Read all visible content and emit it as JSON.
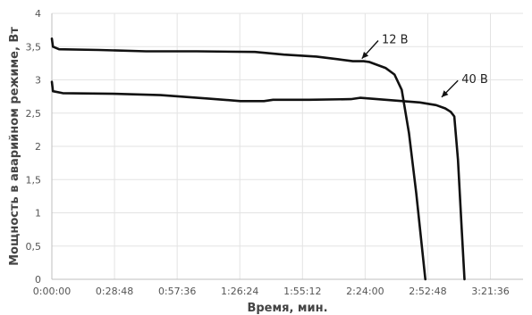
{
  "chart_data": {
    "type": "line",
    "title": "",
    "xlabel": "Время, мин.",
    "ylabel": "Мощность в аварийном режиме, Вт",
    "xlim": [
      0,
      12996
    ],
    "ylim": [
      0,
      4
    ],
    "grid": true,
    "x_ticks": [
      {
        "value": 0,
        "label": "0:00:00"
      },
      {
        "value": 1728,
        "label": "0:28:48"
      },
      {
        "value": 3456,
        "label": "0:57:36"
      },
      {
        "value": 5184,
        "label": "1:26:24"
      },
      {
        "value": 6912,
        "label": "1:55:12"
      },
      {
        "value": 8640,
        "label": "2:24:00"
      },
      {
        "value": 10368,
        "label": "2:52:48"
      },
      {
        "value": 12096,
        "label": "3:21:36"
      }
    ],
    "y_ticks": [
      {
        "value": 0,
        "label": "0"
      },
      {
        "value": 0.5,
        "label": "0,5"
      },
      {
        "value": 1,
        "label": "1"
      },
      {
        "value": 1.5,
        "label": "1,5"
      },
      {
        "value": 2,
        "label": "2"
      },
      {
        "value": 2.5,
        "label": "2,5"
      },
      {
        "value": 3,
        "label": "3"
      },
      {
        "value": 3.5,
        "label": "3,5"
      },
      {
        "value": 4,
        "label": "4"
      }
    ],
    "series": [
      {
        "name": "12 В",
        "points": [
          [
            0,
            3.62
          ],
          [
            30,
            3.5
          ],
          [
            200,
            3.46
          ],
          [
            1300,
            3.45
          ],
          [
            2600,
            3.43
          ],
          [
            4000,
            3.43
          ],
          [
            5600,
            3.42
          ],
          [
            6400,
            3.38
          ],
          [
            7300,
            3.35
          ],
          [
            7900,
            3.31
          ],
          [
            8300,
            3.28
          ],
          [
            8600,
            3.28
          ],
          [
            8750,
            3.27
          ],
          [
            9200,
            3.18
          ],
          [
            9450,
            3.08
          ],
          [
            9650,
            2.85
          ],
          [
            9850,
            2.2
          ],
          [
            10050,
            1.3
          ],
          [
            10300,
            0
          ]
        ]
      },
      {
        "name": "40 В",
        "points": [
          [
            0,
            2.97
          ],
          [
            30,
            2.83
          ],
          [
            300,
            2.8
          ],
          [
            1700,
            2.79
          ],
          [
            3000,
            2.77
          ],
          [
            4300,
            2.72
          ],
          [
            5200,
            2.68
          ],
          [
            5850,
            2.68
          ],
          [
            6100,
            2.7
          ],
          [
            7100,
            2.7
          ],
          [
            8250,
            2.71
          ],
          [
            8500,
            2.73
          ],
          [
            9200,
            2.7
          ],
          [
            10150,
            2.66
          ],
          [
            10600,
            2.62
          ],
          [
            10850,
            2.57
          ],
          [
            11000,
            2.52
          ],
          [
            11100,
            2.45
          ],
          [
            11200,
            1.8
          ],
          [
            11300,
            0.8
          ],
          [
            11380,
            0
          ]
        ]
      }
    ],
    "annotations": [
      {
        "text": "12 В",
        "x": 9100,
        "y": 3.55,
        "arrow_to": [
          8550,
          3.32
        ]
      },
      {
        "text": "40 В",
        "x": 11300,
        "y": 2.95,
        "arrow_to": [
          10750,
          2.74
        ]
      }
    ]
  }
}
